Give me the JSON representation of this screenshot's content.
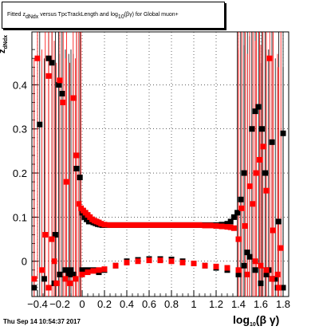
{
  "title": {
    "pre": "Fitted  z",
    "sub": "dNdx",
    "mid": " versus TpcTrackLength and log",
    "sub2": "10",
    "post": "(βγ) for Global muon+"
  },
  "ylabel": {
    "main": "z",
    "sub": "dNdx"
  },
  "xlabel": {
    "main": "log",
    "sub": "10",
    "post": "(β γ)"
  },
  "date": "Thu Sep 14 10:54:37 2017",
  "chart_data": {
    "type": "scatter",
    "xlim": [
      -0.45,
      1.85
    ],
    "ylim": [
      -0.08,
      0.52
    ],
    "x_ticks": [
      -0.4,
      -0.2,
      0,
      0.2,
      0.4,
      0.6,
      0.8,
      1,
      1.2,
      1.4,
      1.6,
      1.8
    ],
    "x_tick_labels": [
      "−0.4",
      "−0.2",
      "0",
      "0.2",
      "0.4",
      "0.6",
      "0.8",
      "1",
      "1.2",
      "1.4",
      "1.6",
      "1.8"
    ],
    "y_ticks": [
      0,
      0.1,
      0.2,
      0.3,
      0.4
    ],
    "y_tick_labels": [
      "0",
      "0.1",
      "0.2",
      "0.3",
      "0.4"
    ],
    "grid": true,
    "series": [
      {
        "color": "#000000",
        "points": [
          [
            -0.43,
            -0.06
          ],
          [
            -0.38,
            0.31
          ],
          [
            -0.34,
            -0.04
          ],
          [
            -0.3,
            0.46
          ],
          [
            -0.27,
            0.45
          ],
          [
            -0.24,
            0.06
          ],
          [
            -0.21,
            0.4
          ],
          [
            -0.18,
            0.38
          ],
          [
            -0.15,
            -0.02
          ],
          [
            -0.12,
            -0.03
          ],
          [
            -0.08,
            -0.03
          ],
          [
            -0.05,
            0.21
          ],
          [
            -0.02,
            0.19
          ],
          [
            0.0,
            0.11
          ],
          [
            0.02,
            0.1
          ],
          [
            0.04,
            0.095
          ],
          [
            0.06,
            0.09
          ],
          [
            0.08,
            0.09
          ],
          [
            0.1,
            0.088
          ],
          [
            0.12,
            0.086
          ],
          [
            0.14,
            0.084
          ],
          [
            0.16,
            0.083
          ],
          [
            0.18,
            0.082
          ],
          [
            0.2,
            0.082
          ],
          [
            0.25,
            0.082
          ],
          [
            0.3,
            0.082
          ],
          [
            0.35,
            0.082
          ],
          [
            0.4,
            0.082
          ],
          [
            0.45,
            0.082
          ],
          [
            0.5,
            0.082
          ],
          [
            0.55,
            0.082
          ],
          [
            0.6,
            0.082
          ],
          [
            0.65,
            0.082
          ],
          [
            0.7,
            0.082
          ],
          [
            0.75,
            0.082
          ],
          [
            0.8,
            0.082
          ],
          [
            0.85,
            0.082
          ],
          [
            0.9,
            0.082
          ],
          [
            0.95,
            0.082
          ],
          [
            1.0,
            0.082
          ],
          [
            1.05,
            0.082
          ],
          [
            1.1,
            0.082
          ],
          [
            1.15,
            0.082
          ],
          [
            1.2,
            0.082
          ],
          [
            1.25,
            0.083
          ],
          [
            1.3,
            0.085
          ],
          [
            1.33,
            0.09
          ],
          [
            1.36,
            0.1
          ],
          [
            1.39,
            0.11
          ],
          [
            1.42,
            0.14
          ],
          [
            1.45,
            0.2
          ],
          [
            1.48,
            0.02
          ],
          [
            1.5,
            0.01
          ],
          [
            1.52,
            0.3
          ],
          [
            1.55,
            0.34
          ],
          [
            1.58,
            0.35
          ],
          [
            1.61,
            0.3
          ],
          [
            1.64,
            0.2
          ],
          [
            1.67,
            -0.02
          ],
          [
            1.7,
            0.27
          ],
          [
            1.73,
            -0.04
          ],
          [
            1.76,
            0.09
          ],
          [
            1.8,
            0.29
          ],
          [
            0.0,
            -0.02
          ],
          [
            0.05,
            -0.02
          ],
          [
            0.1,
            -0.02
          ],
          [
            0.15,
            -0.025
          ],
          [
            0.2,
            -0.02
          ],
          [
            0.3,
            -0.01
          ],
          [
            0.4,
            0.0
          ],
          [
            0.5,
            0.003
          ],
          [
            0.6,
            0.005
          ],
          [
            0.7,
            0.005
          ],
          [
            0.8,
            0.004
          ],
          [
            0.9,
            0.0
          ],
          [
            1.0,
            -0.005
          ],
          [
            1.1,
            -0.01
          ],
          [
            1.2,
            -0.015
          ],
          [
            1.3,
            -0.02
          ],
          [
            1.4,
            -0.03
          ],
          [
            1.45,
            -0.01
          ],
          [
            1.55,
            -0.02
          ],
          [
            1.6,
            -0.05
          ],
          [
            1.65,
            -0.03
          ],
          [
            1.7,
            -0.04
          ],
          [
            1.75,
            -0.06
          ],
          [
            1.8,
            -0.06
          ],
          [
            -0.25,
            -0.05
          ],
          [
            -0.2,
            -0.03
          ],
          [
            -0.1,
            -0.02
          ]
        ]
      },
      {
        "color": "#ff0000",
        "points": [
          [
            -0.43,
            -0.04
          ],
          [
            -0.4,
            0.46
          ],
          [
            -0.36,
            -0.02
          ],
          [
            -0.33,
            0.06
          ],
          [
            -0.3,
            0.42
          ],
          [
            -0.27,
            0.05
          ],
          [
            -0.23,
            -0.05
          ],
          [
            -0.2,
            0.41
          ],
          [
            -0.17,
            0.36
          ],
          [
            -0.14,
            0.18
          ],
          [
            -0.11,
            -0.05
          ],
          [
            -0.08,
            0.37
          ],
          [
            -0.05,
            0.24
          ],
          [
            -0.03,
            0.13
          ],
          [
            -0.01,
            0.12
          ],
          [
            0.01,
            0.115
          ],
          [
            0.03,
            0.11
          ],
          [
            0.05,
            0.105
          ],
          [
            0.07,
            0.1
          ],
          [
            0.09,
            0.095
          ],
          [
            0.11,
            0.092
          ],
          [
            0.13,
            0.09
          ],
          [
            0.15,
            0.088
          ],
          [
            0.17,
            0.085
          ],
          [
            0.2,
            0.083
          ],
          [
            0.25,
            0.082
          ],
          [
            0.3,
            0.082
          ],
          [
            0.35,
            0.082
          ],
          [
            0.4,
            0.082
          ],
          [
            0.45,
            0.082
          ],
          [
            0.5,
            0.082
          ],
          [
            0.55,
            0.082
          ],
          [
            0.6,
            0.082
          ],
          [
            0.65,
            0.082
          ],
          [
            0.7,
            0.082
          ],
          [
            0.75,
            0.082
          ],
          [
            0.8,
            0.082
          ],
          [
            0.85,
            0.082
          ],
          [
            0.9,
            0.082
          ],
          [
            0.95,
            0.082
          ],
          [
            1.0,
            0.082
          ],
          [
            1.05,
            0.082
          ],
          [
            1.1,
            0.081
          ],
          [
            1.15,
            0.081
          ],
          [
            1.2,
            0.08
          ],
          [
            1.25,
            0.079
          ],
          [
            1.3,
            0.078
          ],
          [
            1.33,
            0.077
          ],
          [
            1.36,
            0.075
          ],
          [
            1.4,
            0.05
          ],
          [
            1.43,
            0.12
          ],
          [
            1.46,
            0.08
          ],
          [
            1.5,
            0.17
          ],
          [
            1.53,
            0.13
          ],
          [
            1.56,
            0.2
          ],
          [
            1.59,
            0.23
          ],
          [
            1.62,
            0.26
          ],
          [
            1.65,
            0.16
          ],
          [
            1.68,
            0.46
          ],
          [
            1.71,
            0.07
          ],
          [
            1.75,
            -0.03
          ],
          [
            1.78,
            0.03
          ],
          [
            0.0,
            -0.03
          ],
          [
            0.05,
            -0.025
          ],
          [
            0.1,
            -0.022
          ],
          [
            0.15,
            -0.02
          ],
          [
            0.2,
            -0.018
          ],
          [
            0.3,
            -0.01
          ],
          [
            0.4,
            -0.003
          ],
          [
            0.5,
            0.0
          ],
          [
            0.6,
            0.002
          ],
          [
            0.7,
            0.002
          ],
          [
            0.8,
            0.0
          ],
          [
            0.9,
            -0.003
          ],
          [
            1.0,
            -0.005
          ],
          [
            1.1,
            -0.01
          ],
          [
            1.2,
            -0.012
          ],
          [
            1.3,
            -0.015
          ],
          [
            1.4,
            -0.02
          ],
          [
            1.48,
            -0.03
          ],
          [
            1.55,
            0.0
          ],
          [
            1.6,
            -0.01
          ],
          [
            1.65,
            -0.02
          ],
          [
            1.7,
            -0.04
          ],
          [
            1.76,
            -0.06
          ],
          [
            -0.3,
            -0.06
          ],
          [
            -0.25,
            0.0
          ],
          [
            -0.15,
            -0.04
          ],
          [
            -0.06,
            -0.04
          ]
        ]
      }
    ]
  }
}
